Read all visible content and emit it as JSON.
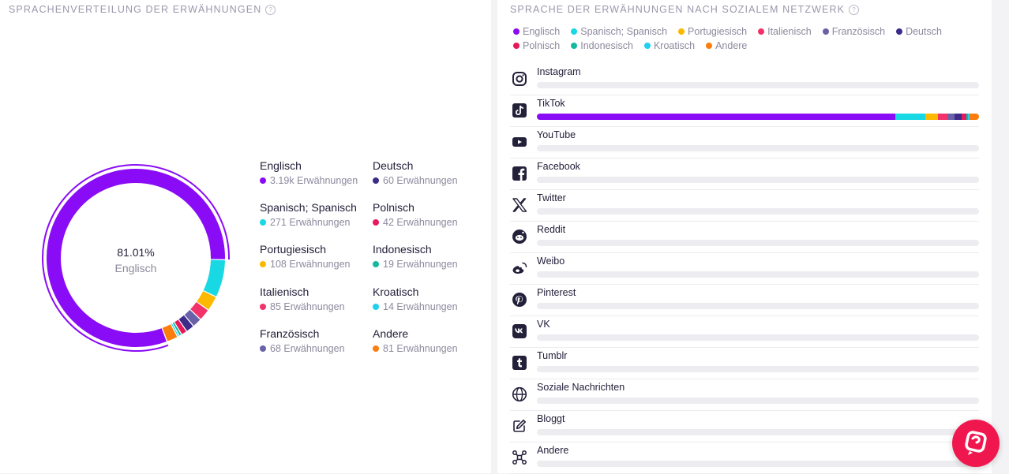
{
  "left": {
    "title": "SPRACHENVERTEILUNG DER ERWÄHNUNGEN",
    "center_percent": "81.01%",
    "center_label": "Englisch",
    "languages": [
      {
        "name": "Englisch",
        "count": "3.19k Erwähnungen",
        "value": 3190,
        "color": "#8a0cf6"
      },
      {
        "name": "Spanisch; Spanisch",
        "count": "271 Erwähnungen",
        "value": 271,
        "color": "#17d8e3"
      },
      {
        "name": "Portugiesisch",
        "count": "108 Erwähnungen",
        "value": 108,
        "color": "#fcb900"
      },
      {
        "name": "Italienisch",
        "count": "85 Erwähnungen",
        "value": 85,
        "color": "#f2336b"
      },
      {
        "name": "Französisch",
        "count": "68 Erwähnungen",
        "value": 68,
        "color": "#6a62a8"
      },
      {
        "name": "Deutsch",
        "count": "60 Erwähnungen",
        "value": 60,
        "color": "#3d2b8a"
      },
      {
        "name": "Polnisch",
        "count": "42 Erwähnungen",
        "value": 42,
        "color": "#e8195b"
      },
      {
        "name": "Indonesisch",
        "count": "19 Erwähnungen",
        "value": 19,
        "color": "#14b8a0"
      },
      {
        "name": "Kroatisch",
        "count": "14 Erwähnungen",
        "value": 14,
        "color": "#1fd0f0"
      },
      {
        "name": "Andere",
        "count": "81 Erwähnungen",
        "value": 81,
        "color": "#fb7d0c"
      }
    ]
  },
  "right": {
    "title": "SPRACHE DER ERWÄHNUNGEN NACH SOZIALEM NETZWERK",
    "legend_row1": [
      {
        "label": "Englisch",
        "color": "#8a0cf6"
      },
      {
        "label": "Spanisch; Spanisch",
        "color": "#17d8e3"
      },
      {
        "label": "Portugiesisch",
        "color": "#fcb900"
      },
      {
        "label": "Italienisch",
        "color": "#f2336b"
      },
      {
        "label": "Französisch",
        "color": "#6a62a8"
      },
      {
        "label": "Deutsch",
        "color": "#3d2b8a"
      }
    ],
    "legend_row2": [
      {
        "label": "Polnisch",
        "color": "#e8195b"
      },
      {
        "label": "Indonesisch",
        "color": "#14b8a0"
      },
      {
        "label": "Kroatisch",
        "color": "#1fd0f0"
      },
      {
        "label": "Andere",
        "color": "#fb7d0c"
      }
    ],
    "networks": [
      {
        "name": "Instagram",
        "icon": "instagram-icon",
        "shares": []
      },
      {
        "name": "TikTok",
        "icon": "tiktok-icon",
        "shares": [
          0.8101,
          0.0688,
          0.0274,
          0.0216,
          0.0173,
          0.0152,
          0.0107,
          0.0048,
          0.0036,
          0.0205
        ]
      },
      {
        "name": "YouTube",
        "icon": "youtube-icon",
        "shares": []
      },
      {
        "name": "Facebook",
        "icon": "facebook-icon",
        "shares": []
      },
      {
        "name": "Twitter",
        "icon": "twitter-icon",
        "shares": []
      },
      {
        "name": "Reddit",
        "icon": "reddit-icon",
        "shares": []
      },
      {
        "name": "Weibo",
        "icon": "weibo-icon",
        "shares": []
      },
      {
        "name": "Pinterest",
        "icon": "pinterest-icon",
        "shares": []
      },
      {
        "name": "VK",
        "icon": "vk-icon",
        "shares": []
      },
      {
        "name": "Tumblr",
        "icon": "tumblr-icon",
        "shares": []
      },
      {
        "name": "Soziale Nachrichten",
        "icon": "globe-icon",
        "shares": []
      },
      {
        "name": "Bloggt",
        "icon": "edit-icon",
        "shares": []
      },
      {
        "name": "Andere",
        "icon": "network-icon",
        "shares": []
      }
    ]
  }
}
